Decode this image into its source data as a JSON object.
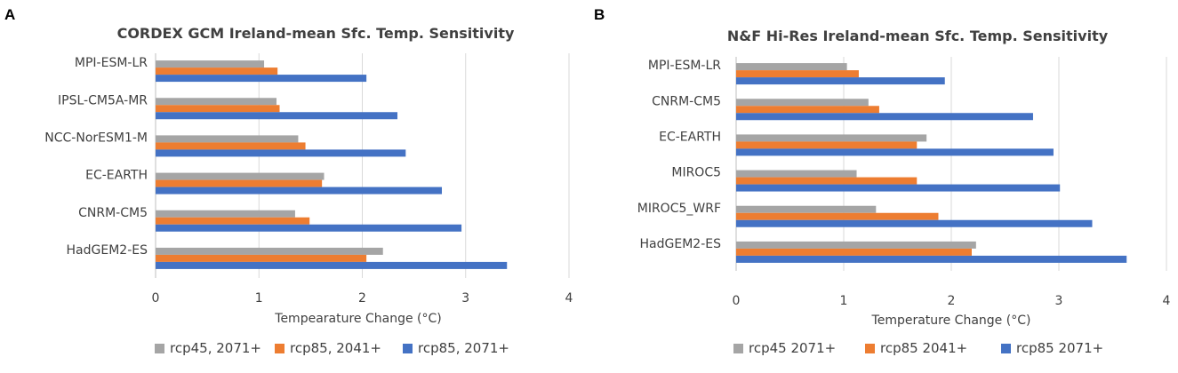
{
  "chart_data": [
    {
      "panel": "A",
      "type": "bar",
      "orientation": "horizontal",
      "title": "CORDEX GCM Ireland-mean Sfc. Temp. Sensitivity",
      "xlabel": "Tempearature Change (°C)",
      "ylabel": "",
      "xlim": [
        0,
        4
      ],
      "xticks": [
        0,
        1,
        2,
        3,
        4
      ],
      "grid": true,
      "legend_position": "bottom",
      "categories": [
        "MPI-ESM-LR",
        "IPSL-CM5A-MR",
        "NCC-NorESM1-M",
        "EC-EARTH",
        "CNRM-CM5",
        "HadGEM2-ES"
      ],
      "series": [
        {
          "name": "rcp45, 2071+",
          "color": "#a5a5a5",
          "values": [
            1.05,
            1.17,
            1.38,
            1.63,
            1.35,
            2.2
          ]
        },
        {
          "name": "rcp85, 2041+",
          "color": "#ed7d31",
          "values": [
            1.18,
            1.2,
            1.45,
            1.61,
            1.49,
            2.04
          ]
        },
        {
          "name": "rcp85, 2071+",
          "color": "#4472c4",
          "values": [
            2.04,
            2.34,
            2.42,
            2.77,
            2.96,
            3.4
          ]
        }
      ]
    },
    {
      "panel": "B",
      "type": "bar",
      "orientation": "horizontal",
      "title": "N&F Hi-Res Ireland-mean Sfc. Temp. Sensitivity",
      "xlabel": "Temperature Change (°C)",
      "ylabel": "",
      "xlim": [
        0,
        4
      ],
      "xticks": [
        0,
        1,
        2,
        3,
        4
      ],
      "grid": true,
      "legend_position": "bottom",
      "categories": [
        "MPI-ESM-LR",
        "CNRM-CM5",
        "EC-EARTH",
        "MIROC5",
        "MIROC5_WRF",
        "HadGEM2-ES"
      ],
      "series": [
        {
          "name": "rcp45 2071+",
          "color": "#a5a5a5",
          "values": [
            1.03,
            1.23,
            1.77,
            1.12,
            1.3,
            2.23
          ]
        },
        {
          "name": "rcp85 2041+",
          "color": "#ed7d31",
          "values": [
            1.14,
            1.33,
            1.68,
            1.68,
            1.88,
            2.19
          ]
        },
        {
          "name": "rcp85 2071+",
          "color": "#4472c4",
          "values": [
            1.94,
            2.76,
            2.95,
            3.01,
            3.31,
            3.63
          ]
        }
      ]
    }
  ]
}
